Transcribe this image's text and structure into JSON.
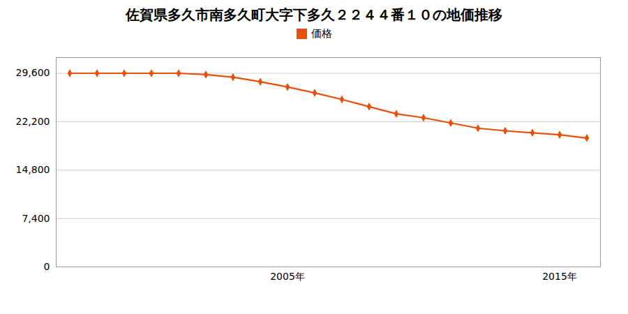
{
  "chart_data": {
    "type": "line",
    "title": "佐賀県多久市南多久町大字下多久２２４４番１０の地価推移",
    "x": [
      1997,
      1998,
      1999,
      2000,
      2001,
      2002,
      2003,
      2004,
      2005,
      2006,
      2007,
      2008,
      2009,
      2010,
      2011,
      2012,
      2013,
      2014,
      2015,
      2016
    ],
    "series": [
      {
        "name": "価格",
        "color": "#e8500a",
        "marker": "diamond",
        "values": [
          29600,
          29600,
          29600,
          29600,
          29600,
          29400,
          29000,
          28300,
          27500,
          26600,
          25600,
          24500,
          23400,
          22800,
          22000,
          21200,
          20800,
          20500,
          20200,
          19700
        ]
      }
    ],
    "xlim": [
      1996.5,
      2016.5
    ],
    "xticks": [
      {
        "value": 2005,
        "label": "2005年"
      },
      {
        "value": 2015,
        "label": "2015年"
      }
    ],
    "ylim": [
      0,
      32000
    ],
    "yticks": [
      0,
      {
        "value": 7400,
        "label": "7,400"
      },
      {
        "value": 14800,
        "label": "14,800"
      },
      {
        "value": 22200,
        "label": "22,200"
      },
      {
        "value": 29600,
        "label": "29,600"
      }
    ],
    "grid": true,
    "legend": "top"
  }
}
